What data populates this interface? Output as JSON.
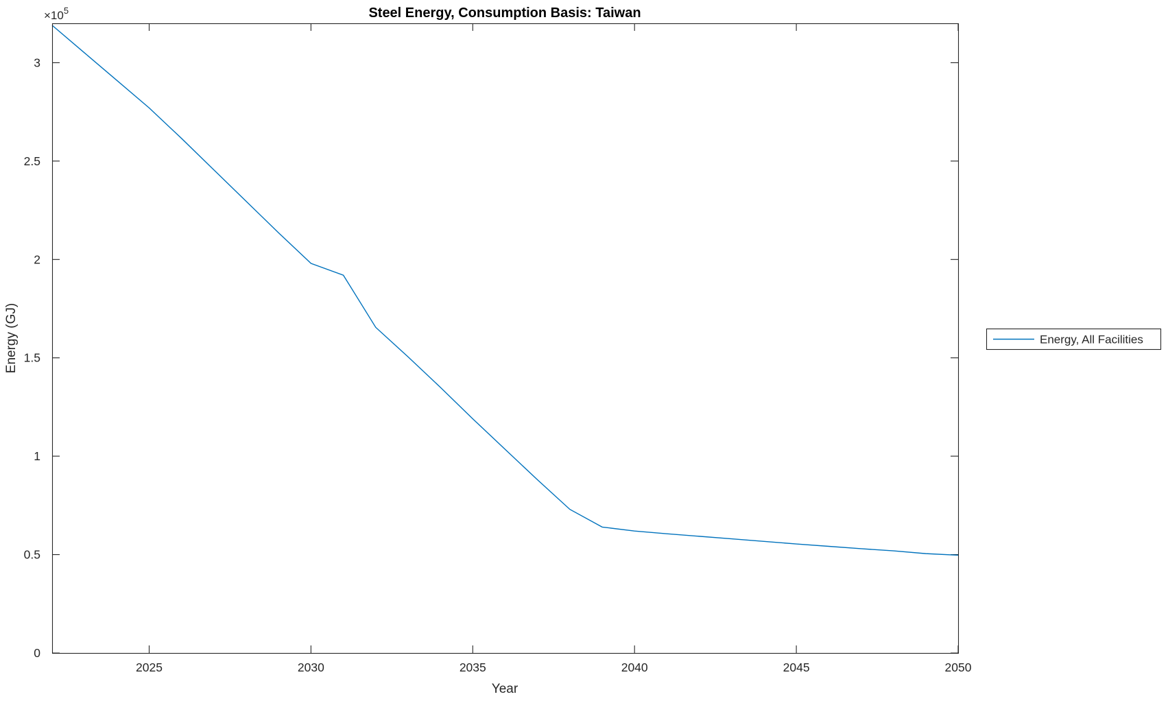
{
  "figure": {
    "background": "#ffffff",
    "axis_color": "#262626"
  },
  "chart_data": {
    "type": "line",
    "title": "Steel Energy, Consumption Basis: Taiwan",
    "xlabel": "Year",
    "ylabel": "Energy (GJ)",
    "y_multiplier": {
      "prefix": "×10",
      "exponent": "5"
    },
    "xlim": [
      2022,
      2050
    ],
    "ylim": [
      0,
      320000
    ],
    "x_ticks": [
      2025,
      2030,
      2035,
      2040,
      2045,
      2050
    ],
    "x_tick_labels": [
      "2025",
      "2030",
      "2035",
      "2040",
      "2045",
      "2050"
    ],
    "y_ticks": [
      0,
      50000,
      100000,
      150000,
      200000,
      250000,
      300000
    ],
    "y_tick_labels": [
      "0",
      "0.5",
      "1",
      "1.5",
      "2",
      "2.5",
      "3"
    ],
    "grid": false,
    "box": true,
    "legend": {
      "position": "outside-right",
      "border": true
    },
    "series": [
      {
        "name": "Energy, All Facilities",
        "color": "#0072BD",
        "x": [
          2022,
          2023,
          2024,
          2025,
          2026,
          2027,
          2028,
          2029,
          2030,
          2031,
          2032,
          2033,
          2034,
          2035,
          2036,
          2037,
          2038,
          2039,
          2040,
          2041,
          2042,
          2043,
          2044,
          2045,
          2046,
          2047,
          2048,
          2049,
          2050
        ],
        "y": [
          319000,
          305000,
          291000,
          277000,
          261500,
          245500,
          229500,
          213500,
          198000,
          192000,
          165500,
          150500,
          135000,
          119000,
          103500,
          88000,
          73000,
          64000,
          62000,
          60600,
          59300,
          58000,
          56700,
          55400,
          54200,
          53000,
          51900,
          50500,
          49700
        ]
      }
    ]
  }
}
